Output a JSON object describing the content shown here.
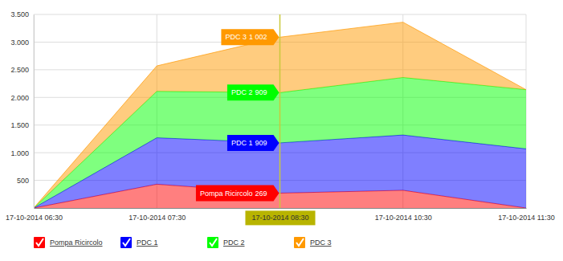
{
  "chart_data": {
    "type": "area",
    "stacked": true,
    "grid": true,
    "data_labels": true,
    "legend": "bottom-left",
    "x": [
      "17-10-2014 06:30",
      "17-10-2014 07:30",
      "17-10-2014 08:30",
      "17-10-2014 10:30",
      "17-10-2014 11:30"
    ],
    "ylim": [
      0,
      3500
    ],
    "yticks": [
      500,
      {
        "value": 1000,
        "label": "1.000"
      },
      {
        "value": 1500,
        "label": "1.500"
      },
      {
        "value": 2000,
        "label": "2.000"
      },
      {
        "value": 2500,
        "label": "2.500"
      },
      {
        "value": 3000,
        "label": "3.000"
      },
      {
        "value": 3500,
        "label": "3.500"
      }
    ],
    "series": [
      {
        "name": "Pompa Ricircolo",
        "color": "#ff0000",
        "values": [
          0,
          430,
          269,
          320,
          0
        ],
        "value_labels": [
          null,
          null,
          "269",
          null,
          null
        ]
      },
      {
        "name": "PDC 1",
        "color": "#0000ff",
        "values": [
          0,
          840,
          909,
          1000,
          1070
        ],
        "value_labels": [
          null,
          null,
          "909",
          null,
          null
        ]
      },
      {
        "name": "PDC 2",
        "color": "#00ff00",
        "values": [
          0,
          840,
          909,
          1040,
          1070
        ],
        "value_labels": [
          null,
          null,
          "909",
          null,
          null
        ]
      },
      {
        "name": "PDC 3",
        "color": "#ff9900",
        "values": [
          0,
          460,
          1002,
          1000,
          0
        ],
        "value_labels": [
          null,
          null,
          "1 002",
          null,
          null
        ]
      }
    ]
  }
}
